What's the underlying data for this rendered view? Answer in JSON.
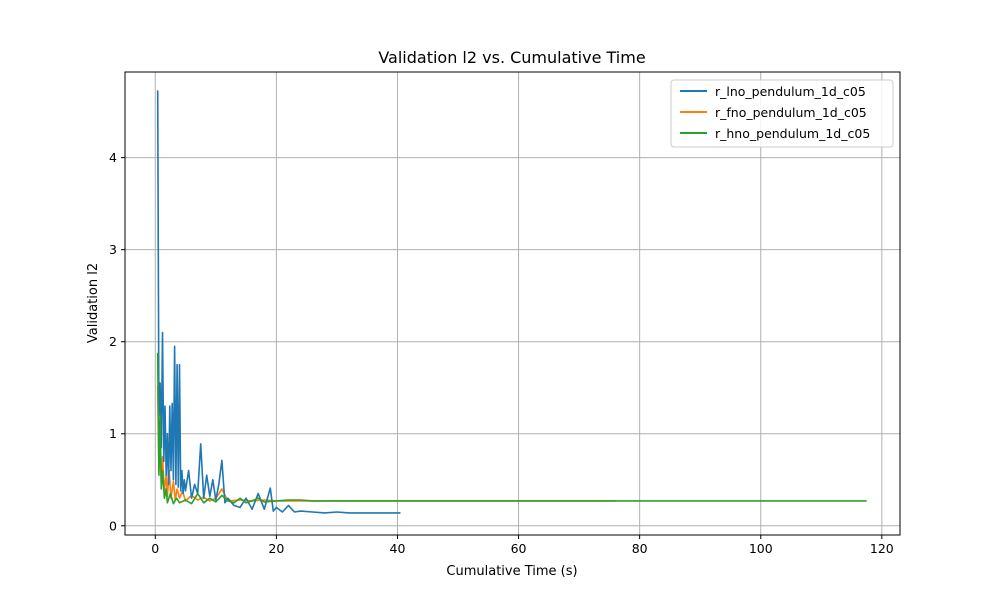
{
  "chart_data": {
    "type": "line",
    "title": "Validation l2 vs. Cumulative Time",
    "xlabel": "Cumulative Time (s)",
    "ylabel": "Validation l2",
    "xlim": [
      -5,
      123
    ],
    "ylim": [
      -0.1,
      4.93
    ],
    "xticks": [
      0,
      20,
      40,
      60,
      80,
      100,
      120
    ],
    "yticks": [
      0,
      1,
      2,
      3,
      4
    ],
    "grid": true,
    "legend_position": "top-right",
    "series": [
      {
        "name": "r_lno_pendulum_1d_c05",
        "color": "#1f77b4",
        "x": [
          0.4,
          0.6,
          0.8,
          1.0,
          1.2,
          1.4,
          1.6,
          1.8,
          2.0,
          2.2,
          2.4,
          2.6,
          2.8,
          3.0,
          3.2,
          3.4,
          3.6,
          3.8,
          4.0,
          4.2,
          4.4,
          4.6,
          4.8,
          5.0,
          5.5,
          6.0,
          6.5,
          7.0,
          7.5,
          8.0,
          8.5,
          9.0,
          9.5,
          10.0,
          10.5,
          11.0,
          11.5,
          12.0,
          13.0,
          14.0,
          15.0,
          16.0,
          17.0,
          18.0,
          19.0,
          19.5,
          20.0,
          21.0,
          22.0,
          23.0,
          24.0,
          26.0,
          28.0,
          30.0,
          32.0,
          34.0,
          36.0,
          38.0,
          40.5
        ],
        "y": [
          4.73,
          1.2,
          1.55,
          0.85,
          2.1,
          0.7,
          1.3,
          0.55,
          1.0,
          0.45,
          1.3,
          0.6,
          1.33,
          0.5,
          1.95,
          0.45,
          1.75,
          0.42,
          1.75,
          0.38,
          0.6,
          0.35,
          0.5,
          0.38,
          0.6,
          0.3,
          0.45,
          0.35,
          0.89,
          0.3,
          0.55,
          0.32,
          0.5,
          0.28,
          0.45,
          0.71,
          0.25,
          0.3,
          0.22,
          0.2,
          0.3,
          0.18,
          0.35,
          0.18,
          0.41,
          0.16,
          0.2,
          0.15,
          0.22,
          0.15,
          0.16,
          0.15,
          0.14,
          0.15,
          0.14,
          0.14,
          0.14,
          0.14,
          0.14
        ]
      },
      {
        "name": "r_fno_pendulum_1d_c05",
        "color": "#ff7f0e",
        "x": [
          0.4,
          0.6,
          0.8,
          1.0,
          1.2,
          1.5,
          1.8,
          2.0,
          2.3,
          2.6,
          3.0,
          3.3,
          3.6,
          4.0,
          4.5,
          5.0,
          6.0,
          7.0,
          8.0,
          9.0,
          10.0,
          11.0,
          12.0,
          14.0,
          16.0,
          18.0,
          20.0,
          25.0,
          30.0,
          40.0,
          50.0,
          60.0,
          70.0,
          76.0
        ],
        "y": [
          1.52,
          0.6,
          0.9,
          0.45,
          0.75,
          0.38,
          0.55,
          0.32,
          0.6,
          0.3,
          0.48,
          0.28,
          0.4,
          0.3,
          0.38,
          0.27,
          0.33,
          0.28,
          0.31,
          0.27,
          0.3,
          0.4,
          0.27,
          0.28,
          0.27,
          0.28,
          0.27,
          0.27,
          0.27,
          0.27,
          0.27,
          0.27,
          0.27,
          0.27
        ]
      },
      {
        "name": "r_hno_pendulum_1d_c05",
        "color": "#2ca02c",
        "x": [
          0.4,
          0.6,
          0.8,
          1.0,
          1.2,
          1.5,
          1.8,
          2.0,
          2.5,
          3.0,
          3.5,
          4.0,
          5.0,
          6.0,
          7.0,
          8.0,
          9.0,
          10.0,
          11.0,
          12.0,
          13.0,
          14.0,
          15.0,
          16.0,
          17.0,
          18.0,
          20.0,
          22.0,
          24.0,
          26.0,
          30.0,
          40.0,
          60.0,
          80.0,
          100.0,
          117.5
        ],
        "y": [
          1.88,
          0.55,
          1.2,
          0.4,
          0.6,
          0.3,
          0.4,
          0.25,
          0.35,
          0.24,
          0.3,
          0.25,
          0.28,
          0.24,
          0.35,
          0.25,
          0.3,
          0.26,
          0.33,
          0.27,
          0.25,
          0.3,
          0.25,
          0.27,
          0.3,
          0.26,
          0.27,
          0.28,
          0.28,
          0.27,
          0.27,
          0.27,
          0.27,
          0.27,
          0.27,
          0.27
        ]
      }
    ]
  }
}
